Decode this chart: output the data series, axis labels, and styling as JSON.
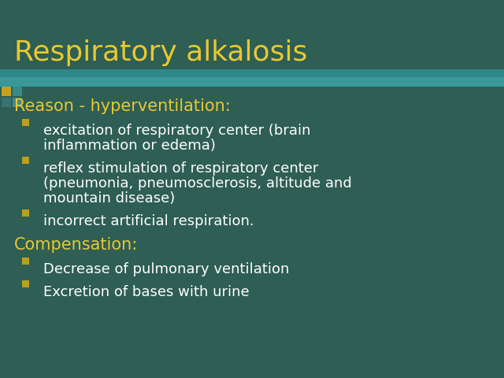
{
  "title": "Respiratory alkalosis",
  "title_color": "#E8C832",
  "background_color": "#2E5E54",
  "teal_bar_color": "#3A9090",
  "teal_bar_color2": "#2AA0A0",
  "bullet_sq_color": "#B8A020",
  "accent_sq_color": "#4A7878",
  "text_color": "#FFFFFF",
  "section_color": "#E8C832",
  "title_fontsize": 26,
  "section_fontsize": 15,
  "bullet_fontsize": 13,
  "sections": [
    {
      "label": "Reason - hyperventilation:",
      "type": "header"
    },
    {
      "label": "excitation of respiratory center (brain\ninflammation or edema)",
      "type": "bullet"
    },
    {
      "label": "reflex stimulation of respiratory center\n(pneumonia, pneumosclerosis, altitude and\nmountain disease)",
      "type": "bullet"
    },
    {
      "label": "incorrect artificial respiration.",
      "type": "bullet"
    },
    {
      "label": "Compensation:",
      "type": "header"
    },
    {
      "label": "Decrease of pulmonary ventilation",
      "type": "bullet"
    },
    {
      "label": "Excretion of bases with urine",
      "type": "bullet"
    }
  ]
}
